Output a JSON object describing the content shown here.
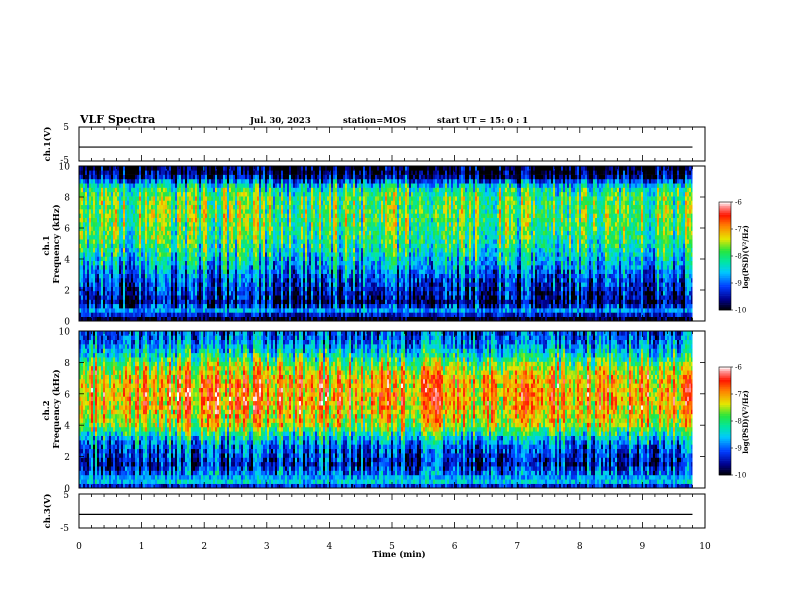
{
  "header": {
    "title": "VLF Spectra",
    "date": "Jul. 30, 2023",
    "station": "station=MOS",
    "start_time": "start UT =  15: 0 : 1"
  },
  "chart_data": [
    {
      "type": "line",
      "panel": "ch1-waveform",
      "ylabel": "ch.1(V)",
      "ylim": [
        -5,
        5
      ],
      "yticks": [
        "5",
        "-5"
      ],
      "x": [
        0,
        9.8
      ],
      "y": [
        -0.9,
        -0.9
      ],
      "color": "#000000"
    },
    {
      "type": "heatmap",
      "panel": "ch1-spectrogram",
      "ylabel": "ch.1\nFrequency (kHz)",
      "ylim": [
        0,
        10
      ],
      "yticks": [
        "0",
        "2",
        "4",
        "6",
        "8",
        "10"
      ],
      "xlim": [
        0,
        10
      ],
      "data_extent_min": 9.8,
      "colorbar": {
        "label": "log(PSD)(V²/Hz)",
        "range": [
          -10,
          -6
        ],
        "ticks": [
          "-6",
          "-7",
          "-8",
          "-9",
          "-10"
        ]
      },
      "profile": [
        {
          "f": 0.0,
          "level": -10.0
        },
        {
          "f": 0.3,
          "level": -9.8
        },
        {
          "f": 0.6,
          "level": -8.6
        },
        {
          "f": 1.2,
          "level": -9.6
        },
        {
          "f": 2.0,
          "level": -9.3
        },
        {
          "f": 3.0,
          "level": -8.9
        },
        {
          "f": 4.0,
          "level": -8.4
        },
        {
          "f": 5.0,
          "level": -8.0
        },
        {
          "f": 6.0,
          "level": -7.8
        },
        {
          "f": 7.0,
          "level": -7.7
        },
        {
          "f": 8.0,
          "level": -7.8
        },
        {
          "f": 8.6,
          "level": -8.1
        },
        {
          "f": 9.0,
          "level": -8.9
        },
        {
          "f": 9.4,
          "level": -9.7
        },
        {
          "f": 10.0,
          "level": -10.0
        }
      ]
    },
    {
      "type": "heatmap",
      "panel": "ch2-spectrogram",
      "ylabel": "ch.2\nFrequency (kHz)",
      "ylim": [
        0,
        10
      ],
      "yticks": [
        "0",
        "2",
        "4",
        "6",
        "8",
        "10"
      ],
      "xlim": [
        0,
        10
      ],
      "data_extent_min": 9.8,
      "colorbar": {
        "label": "log(PSD)(V²/Hz)",
        "range": [
          -10,
          -6
        ],
        "ticks": [
          "-6",
          "-7",
          "-8",
          "-9",
          "-10"
        ]
      },
      "profile": [
        {
          "f": 0.0,
          "level": -10.0
        },
        {
          "f": 0.3,
          "level": -8.4
        },
        {
          "f": 0.7,
          "level": -8.7
        },
        {
          "f": 1.5,
          "level": -9.3
        },
        {
          "f": 2.5,
          "level": -9.0
        },
        {
          "f": 3.3,
          "level": -8.3
        },
        {
          "f": 4.0,
          "level": -7.4
        },
        {
          "f": 5.0,
          "level": -7.0
        },
        {
          "f": 6.0,
          "level": -6.9
        },
        {
          "f": 7.0,
          "level": -7.0
        },
        {
          "f": 7.8,
          "level": -7.5
        },
        {
          "f": 8.5,
          "level": -8.2
        },
        {
          "f": 9.3,
          "level": -8.8
        },
        {
          "f": 10.0,
          "level": -9.0
        }
      ]
    },
    {
      "type": "line",
      "panel": "ch3-waveform",
      "ylabel": "ch.3(V)",
      "ylim": [
        -5,
        5
      ],
      "yticks": [
        "5",
        "-5"
      ],
      "x": [
        0,
        9.8
      ],
      "y": [
        -1.0,
        -1.0
      ],
      "color": "#000000"
    }
  ],
  "xaxis": {
    "label": "Time (min)",
    "range": [
      0,
      10
    ],
    "ticks": [
      "0",
      "1",
      "2",
      "3",
      "4",
      "5",
      "6",
      "7",
      "8",
      "9",
      "10"
    ]
  }
}
